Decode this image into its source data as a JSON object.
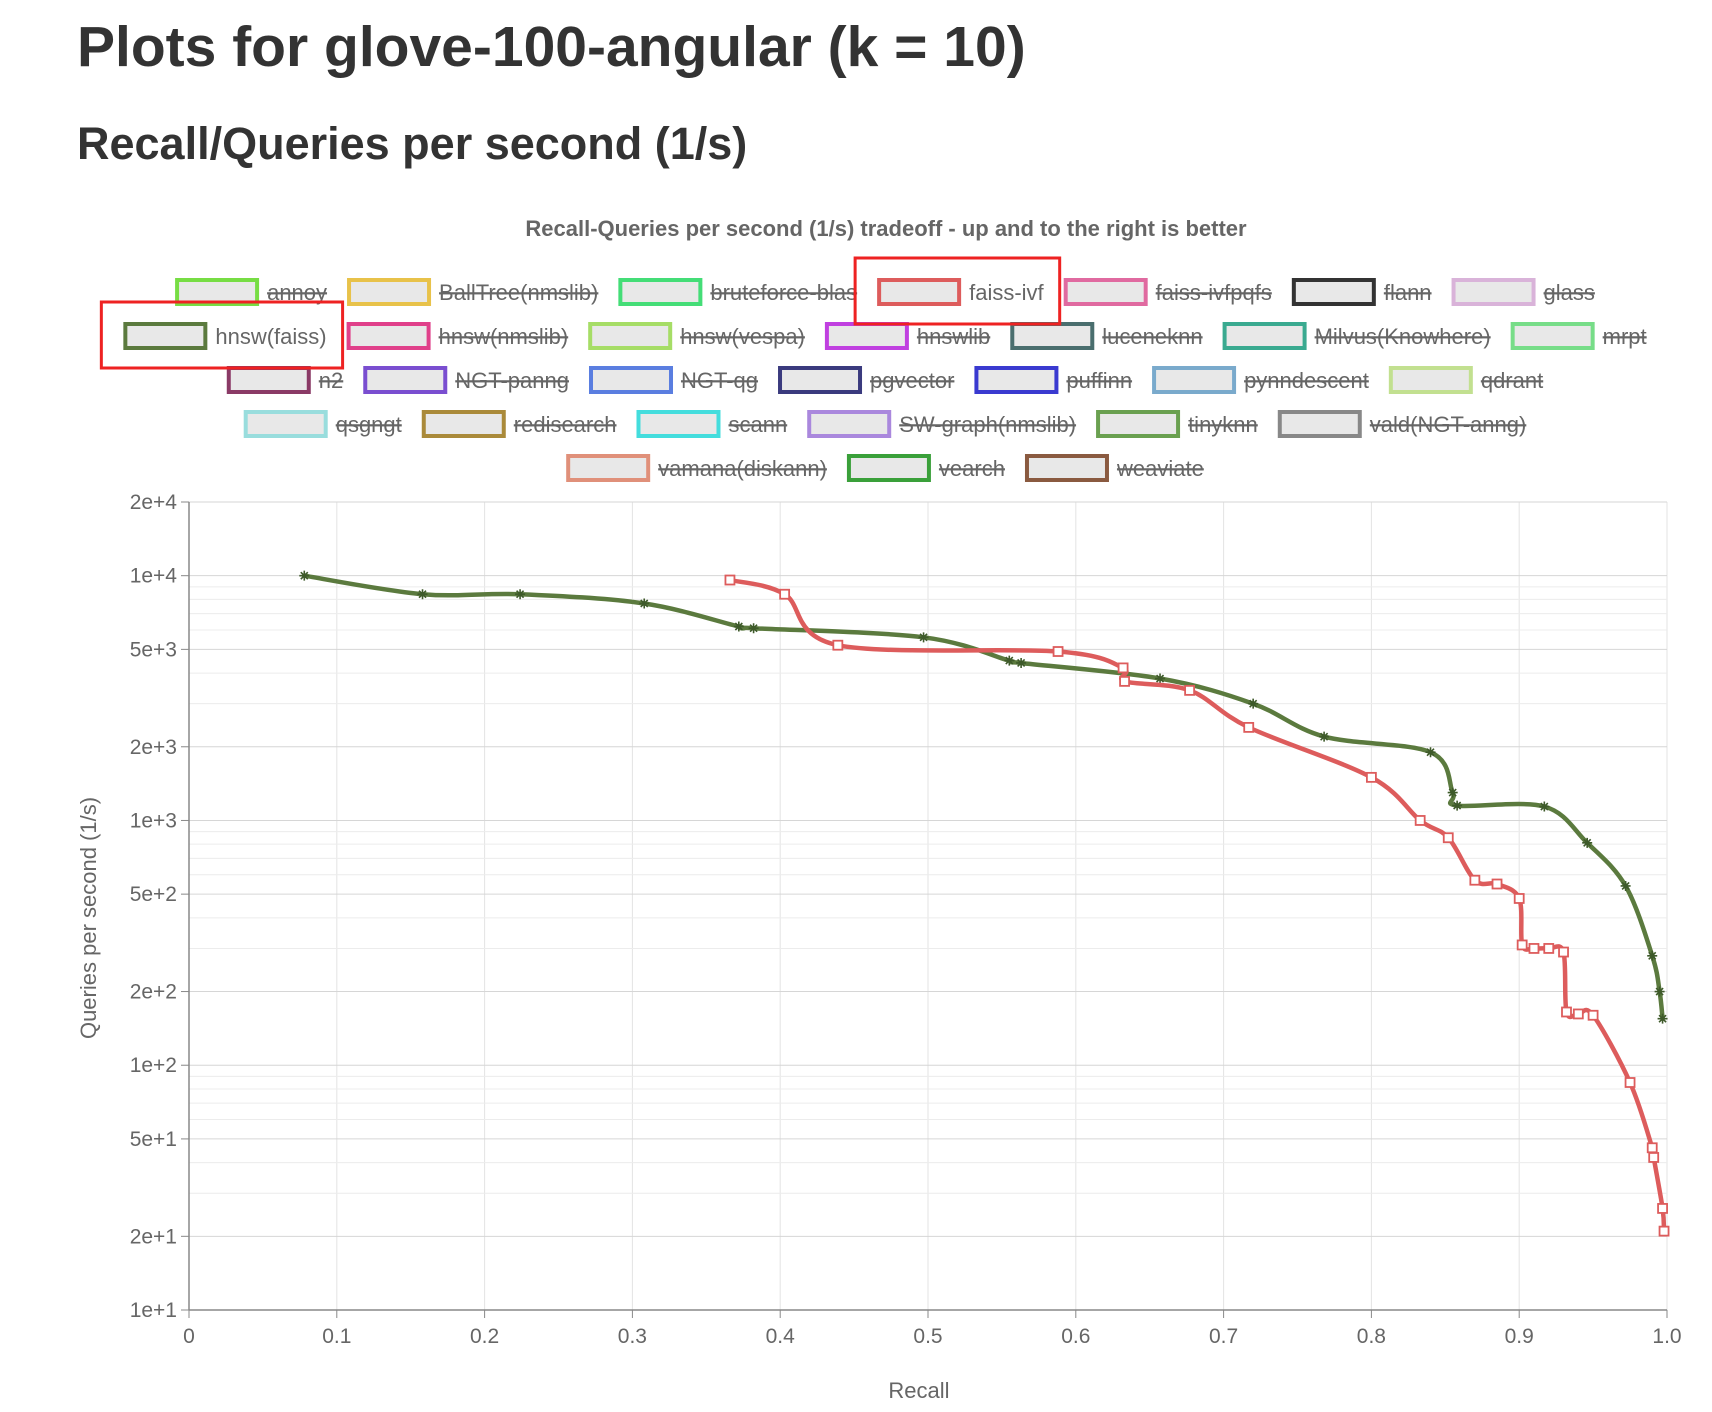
{
  "page": {
    "title": "Plots for glove-100-angular (k = 10)",
    "subtitle": "Recall/Queries per second (1/s)"
  },
  "chart_data": {
    "type": "line",
    "title": "Recall-Queries per second (1/s) tradeoff - up and to the right is better",
    "xlabel": "Recall",
    "ylabel": "Queries per second (1/s)",
    "xlim": [
      0,
      1.0
    ],
    "ylim": [
      10,
      20000
    ],
    "yscale": "log",
    "grid": true,
    "legend_position": "top",
    "x_ticks": [
      "0",
      "0.1",
      "0.2",
      "0.3",
      "0.4",
      "0.5",
      "0.6",
      "0.7",
      "0.8",
      "0.9",
      "1.0"
    ],
    "y_ticks": [
      {
        "value": 10,
        "label": "1e+1"
      },
      {
        "value": 20,
        "label": "2e+1"
      },
      {
        "value": 50,
        "label": "5e+1"
      },
      {
        "value": 100,
        "label": "1e+2"
      },
      {
        "value": 200,
        "label": "2e+2"
      },
      {
        "value": 500,
        "label": "5e+2"
      },
      {
        "value": 1000,
        "label": "1e+3"
      },
      {
        "value": 2000,
        "label": "2e+3"
      },
      {
        "value": 5000,
        "label": "5e+3"
      },
      {
        "value": 10000,
        "label": "1e+4"
      },
      {
        "value": 20000,
        "label": "2e+4"
      }
    ],
    "legend": [
      {
        "name": "annoy",
        "color": "#77dd44",
        "hidden": true
      },
      {
        "name": "BallTree(nmslib)",
        "color": "#e8c24a",
        "hidden": true
      },
      {
        "name": "bruteforce-blas",
        "color": "#44dd77",
        "hidden": true
      },
      {
        "name": "faiss-ivf",
        "color": "#dd5c5c",
        "hidden": false,
        "highlighted": true
      },
      {
        "name": "faiss-ivfpqfs",
        "color": "#e06aa0",
        "hidden": true
      },
      {
        "name": "flann",
        "color": "#333333",
        "hidden": true
      },
      {
        "name": "glass",
        "color": "#d9b3d9",
        "hidden": true
      },
      {
        "name": "hnsw(faiss)",
        "color": "#5b7a3e",
        "hidden": false,
        "highlighted": true
      },
      {
        "name": "hnsw(nmslib)",
        "color": "#e0408a",
        "hidden": true
      },
      {
        "name": "hnsw(vespa)",
        "color": "#a6dd66",
        "hidden": true
      },
      {
        "name": "hnswlib",
        "color": "#c040e0",
        "hidden": true
      },
      {
        "name": "luceneknn",
        "color": "#4a6e6e",
        "hidden": true
      },
      {
        "name": "Milvus(Knowhere)",
        "color": "#3aaa90",
        "hidden": true
      },
      {
        "name": "mrpt",
        "color": "#77dd88",
        "hidden": true
      },
      {
        "name": "n2",
        "color": "#8a3a66",
        "hidden": true
      },
      {
        "name": "NGT-panng",
        "color": "#7a4ed0",
        "hidden": true
      },
      {
        "name": "NGT-qg",
        "color": "#5a7ee0",
        "hidden": true
      },
      {
        "name": "pgvector",
        "color": "#3a3a7e",
        "hidden": true
      },
      {
        "name": "puffinn",
        "color": "#3a3ad0",
        "hidden": true
      },
      {
        "name": "pynndescent",
        "color": "#7aaacc",
        "hidden": true
      },
      {
        "name": "qdrant",
        "color": "#c2e090",
        "hidden": true
      },
      {
        "name": "qsgngt",
        "color": "#99dddd",
        "hidden": true
      },
      {
        "name": "redisearch",
        "color": "#aa8a3a",
        "hidden": true
      },
      {
        "name": "scann",
        "color": "#44dddd",
        "hidden": true
      },
      {
        "name": "SW-graph(nmslib)",
        "color": "#aa88dd",
        "hidden": true
      },
      {
        "name": "tinyknn",
        "color": "#6aa050",
        "hidden": true
      },
      {
        "name": "vald(NGT-anng)",
        "color": "#888888",
        "hidden": true
      },
      {
        "name": "vamana(diskann)",
        "color": "#e0907a",
        "hidden": true
      },
      {
        "name": "vearch",
        "color": "#3aa03a",
        "hidden": true
      },
      {
        "name": "weaviate",
        "color": "#8a5a40",
        "hidden": true
      }
    ],
    "series": [
      {
        "name": "hnsw(faiss)",
        "color": "#5b7a3e",
        "marker": "asterisk",
        "x": [
          0.078,
          0.158,
          0.224,
          0.308,
          0.372,
          0.382,
          0.497,
          0.555,
          0.563,
          0.657,
          0.72,
          0.768,
          0.84,
          0.855,
          0.858,
          0.917,
          0.946,
          0.972,
          0.99,
          0.995,
          0.997
        ],
        "y": [
          10000,
          8400,
          8400,
          7700,
          6200,
          6100,
          5600,
          4500,
          4400,
          3800,
          3000,
          2200,
          1900,
          1300,
          1150,
          1140,
          810,
          540,
          280,
          200,
          155
        ]
      },
      {
        "name": "faiss-ivf",
        "color": "#dd5c5c",
        "marker": "square",
        "x": [
          0.366,
          0.403,
          0.439,
          0.588,
          0.632,
          0.633,
          0.677,
          0.717,
          0.8,
          0.833,
          0.852,
          0.87,
          0.885,
          0.9,
          0.902,
          0.91,
          0.92,
          0.93,
          0.932,
          0.94,
          0.95,
          0.975,
          0.99,
          0.991,
          0.997,
          0.998
        ],
        "y": [
          9600,
          8400,
          5200,
          4900,
          4200,
          3700,
          3400,
          2400,
          1500,
          1000,
          850,
          570,
          550,
          480,
          310,
          300,
          300,
          290,
          165,
          162,
          160,
          85,
          46,
          42,
          26,
          21
        ]
      }
    ]
  }
}
